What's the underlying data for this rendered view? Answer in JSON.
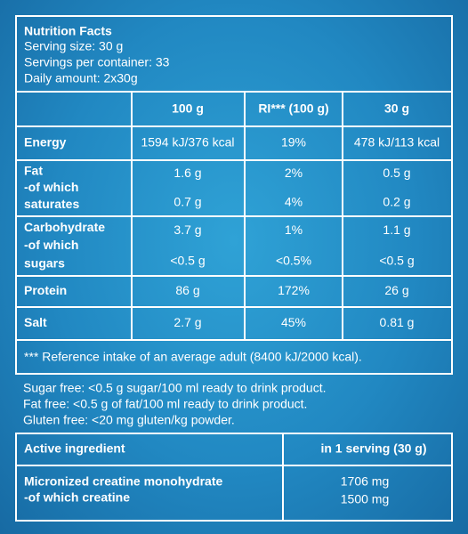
{
  "header": {
    "title": "Nutrition Facts",
    "lines": [
      "Serving size: 30 g",
      "Servings per container: 33",
      "Daily amount: 2x30g"
    ]
  },
  "table": {
    "columns": [
      "100 g",
      "RI*** (100 g)",
      "30 g"
    ],
    "rows": [
      {
        "label": [
          "Energy"
        ],
        "values": [
          [
            "1594 kJ/376 kcal"
          ],
          [
            "19%"
          ],
          [
            "478 kJ/113 kcal"
          ]
        ]
      },
      {
        "label": [
          "Fat",
          "-of which",
          "saturates"
        ],
        "values": [
          [
            "1.6 g",
            "0.7 g"
          ],
          [
            "2%",
            "4%"
          ],
          [
            "0.5 g",
            "0.2 g"
          ]
        ]
      },
      {
        "label": [
          "Carbohydrate",
          "-of which",
          "sugars"
        ],
        "values": [
          [
            "3.7 g",
            "<0.5 g"
          ],
          [
            "1%",
            "<0.5%"
          ],
          [
            "1.1 g",
            "<0.5 g"
          ]
        ]
      },
      {
        "label": [
          "Protein"
        ],
        "values": [
          [
            "86 g"
          ],
          [
            "172%"
          ],
          [
            "26 g"
          ]
        ]
      },
      {
        "label": [
          "Salt"
        ],
        "values": [
          [
            "2.7 g"
          ],
          [
            "45%"
          ],
          [
            "0.81 g"
          ]
        ]
      }
    ],
    "footnote": "*** Reference intake of an average adult (8400 kJ/2000 kcal)."
  },
  "notes": [
    "Sugar free: <0.5 g sugar/100 ml ready to drink product.",
    "Fat free: <0.5 g of fat/100 ml ready to drink product.",
    "Gluten free: <20 mg gluten/kg powder."
  ],
  "active": {
    "columns": [
      "Active ingredient",
      "in 1 serving (30 g)"
    ],
    "label": [
      "Micronized creatine monohydrate",
      "-of which creatine"
    ],
    "values": [
      "1706 mg",
      "1500 mg"
    ]
  }
}
